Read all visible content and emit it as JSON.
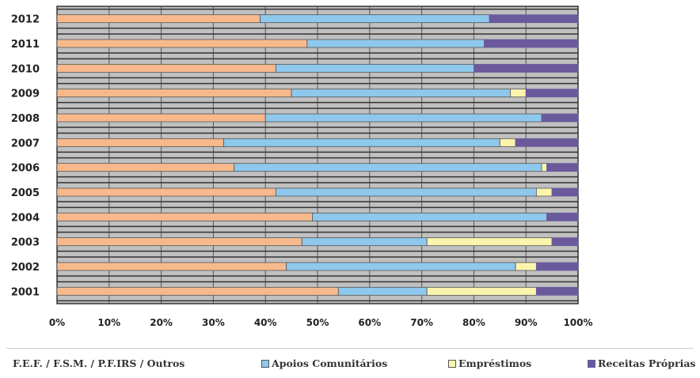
{
  "chart_data": {
    "type": "bar",
    "orientation": "horizontal",
    "stacked": "percent",
    "categories": [
      "2012",
      "2011",
      "2010",
      "2009",
      "2008",
      "2007",
      "2006",
      "2005",
      "2004",
      "2003",
      "2002",
      "2001"
    ],
    "series": [
      {
        "name": "F.E.F. / F.S.M. / P.F.IRS / Outros",
        "color": "#f7b98c",
        "values": [
          39,
          48,
          42,
          45,
          40,
          32,
          34,
          42,
          49,
          47,
          44,
          54
        ]
      },
      {
        "name": "Apoios Comunitários",
        "color": "#8ec8ec",
        "values": [
          44,
          34,
          38,
          42,
          53,
          53,
          59,
          50,
          45,
          24,
          44,
          17
        ]
      },
      {
        "name": "Empréstimos",
        "color": "#fbf4ad",
        "values": [
          0,
          0,
          0,
          3,
          0,
          3,
          1,
          3,
          0,
          24,
          4,
          21
        ]
      },
      {
        "name": "Receitas Próprias",
        "color": "#6a5a9c",
        "values": [
          17,
          18,
          20,
          10,
          7,
          12,
          6,
          5,
          6,
          5,
          8,
          8
        ]
      }
    ],
    "x_ticks": [
      "0%",
      "10%",
      "20%",
      "30%",
      "40%",
      "50%",
      "60%",
      "70%",
      "80%",
      "90%",
      "100%"
    ],
    "xlim": [
      0,
      100
    ],
    "grid": true,
    "legend_position": "bottom"
  }
}
